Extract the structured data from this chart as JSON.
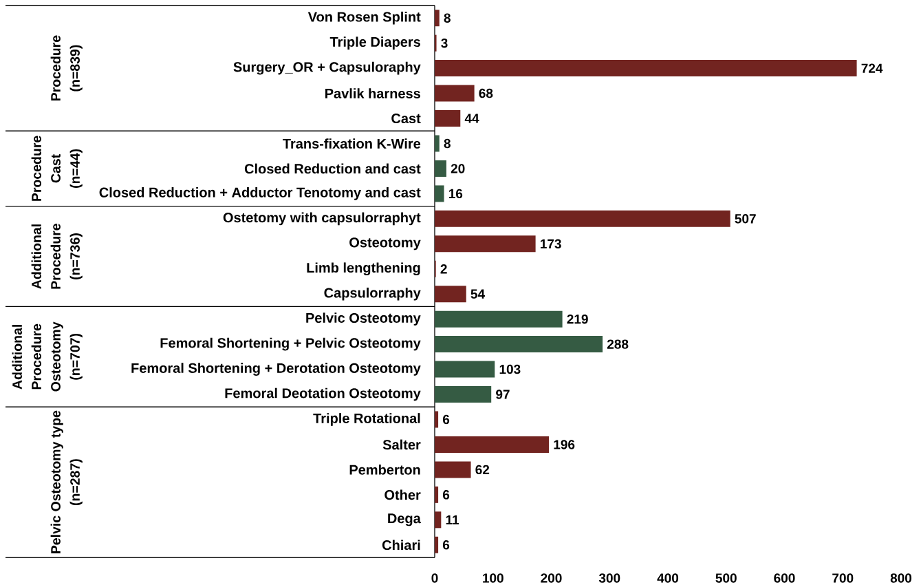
{
  "chart_data": {
    "type": "bar",
    "orientation": "horizontal",
    "categories": [
      "Von Rosen Splint",
      "Triple Diapers",
      "Surgery_OR + Capsuloraphy",
      "Pavlik harness",
      "Cast",
      "Trans-fixation K-Wire",
      "Closed Reduction and cast",
      "Closed Reduction + Adductor Tenotomy and cast",
      "Ostetomy with capsulorraphyt",
      "Osteotomy",
      "Limb lengthening",
      "Capsulorraphy",
      "Pelvic Osteotomy",
      "Femoral Shortening + Pelvic Osteotomy",
      "Femoral Shortening + Derotation Osteotomy",
      "Femoral Deotation Osteotomy",
      "Triple Rotational",
      "Salter",
      "Pemberton",
      "Other",
      "Dega",
      "Chiari"
    ],
    "values": [
      8,
      3,
      724,
      68,
      44,
      8,
      20,
      16,
      507,
      173,
      2,
      54,
      219,
      288,
      103,
      97,
      6,
      196,
      62,
      6,
      11,
      6
    ],
    "colors": [
      "#722420",
      "#722420",
      "#722420",
      "#722420",
      "#722420",
      "#355b43",
      "#355b43",
      "#355b43",
      "#722420",
      "#722420",
      "#722420",
      "#722420",
      "#355b43",
      "#355b43",
      "#355b43",
      "#355b43",
      "#722420",
      "#722420",
      "#722420",
      "#722420",
      "#722420",
      "#722420"
    ],
    "xlim": [
      0,
      800
    ],
    "xticks": [
      0,
      100,
      200,
      300,
      400,
      500,
      600,
      700,
      800
    ],
    "data_labels": true,
    "annotations": [
      "Procedure (n=839)",
      "Procedure Cast (n=44)",
      "Additional Procedure (n=736)",
      "Additional Procedure Osteotomy (n=707)",
      "Pelvic Osteotomy type (n=287)"
    ]
  }
}
